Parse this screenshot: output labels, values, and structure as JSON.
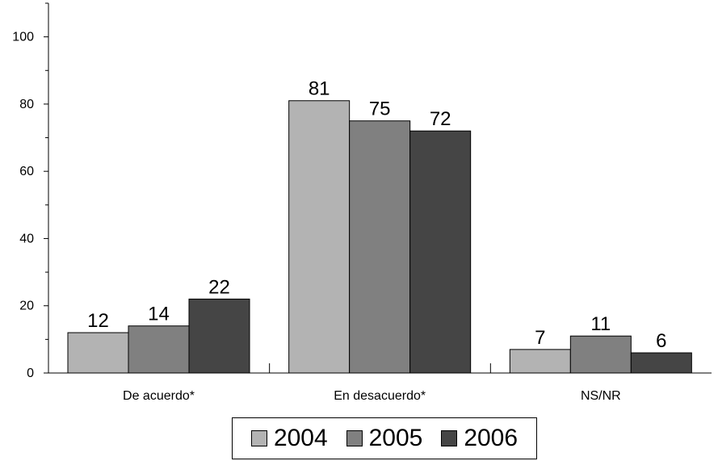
{
  "chart_data": {
    "type": "bar",
    "title": "",
    "xlabel": "",
    "ylabel": "",
    "ylim": [
      0,
      110
    ],
    "yticks": [
      0,
      20,
      40,
      60,
      80,
      100
    ],
    "minor_yticks": [
      10,
      30,
      50,
      70,
      90,
      110
    ],
    "grid": false,
    "legend_position": "bottom",
    "categories": [
      "De acuerdo*",
      "En desacuerdo*",
      "NS/NR"
    ],
    "series": [
      {
        "name": "2004",
        "color": "#b3b3b3",
        "values": [
          12,
          81,
          7
        ]
      },
      {
        "name": "2005",
        "color": "#808080",
        "values": [
          14,
          75,
          11
        ]
      },
      {
        "name": "2006",
        "color": "#454545",
        "values": [
          22,
          72,
          6
        ]
      }
    ]
  }
}
